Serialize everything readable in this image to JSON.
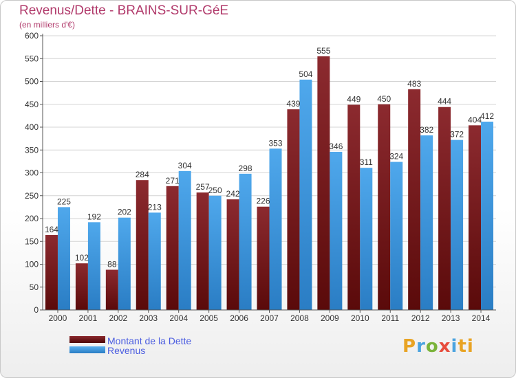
{
  "header": {
    "title": "Revenus/Dette - BRAINS-SUR-GéE",
    "subtitle": "(en milliers d'€)"
  },
  "logo": {
    "text": "Proxiti",
    "letters": [
      "P",
      "r",
      "o",
      "x",
      "i",
      "ti"
    ]
  },
  "colors": {
    "dette": "#8b1a1a",
    "revenus": "#3f9be0",
    "title": "#b13a6b",
    "legend_text": "#4a5ce0"
  },
  "chart_data": {
    "type": "bar",
    "categories": [
      "2000",
      "2001",
      "2002",
      "2003",
      "2004",
      "2005",
      "2006",
      "2007",
      "2008",
      "2009",
      "2010",
      "2011",
      "2012",
      "2013",
      "2014"
    ],
    "series": [
      {
        "name": "Montant de la Dette",
        "values": [
          164,
          102,
          88,
          284,
          271,
          257,
          242,
          226,
          439,
          555,
          449,
          450,
          483,
          444,
          404
        ]
      },
      {
        "name": "Revenus",
        "values": [
          225,
          192,
          202,
          213,
          304,
          250,
          298,
          353,
          504,
          346,
          311,
          324,
          382,
          372,
          412
        ]
      }
    ],
    "value_labels": [
      [
        "164",
        "102",
        "88",
        "284",
        "271",
        "257",
        "242",
        "226",
        "439",
        "555",
        "449",
        "450",
        "483",
        "444",
        "404"
      ],
      [
        "225",
        "192",
        "202",
        "213",
        "304",
        "250",
        "298",
        "353",
        "504",
        "346",
        "311",
        "324",
        "382",
        "372",
        "412"
      ]
    ],
    "yticks": [
      "0",
      "50",
      "100",
      "150",
      "200",
      "250",
      "300",
      "350",
      "400",
      "450",
      "500",
      "550",
      "600"
    ],
    "ylim": [
      0,
      600
    ],
    "grid": true,
    "legend": "bottom-left"
  }
}
